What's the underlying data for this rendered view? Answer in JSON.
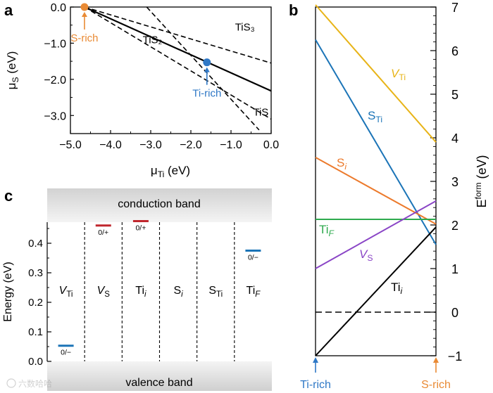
{
  "chart_data": [
    {
      "panel": "a",
      "type": "line",
      "title": "",
      "xlabel": "μ_Ti (eV)",
      "ylabel": "μ_S (eV)",
      "xlim": [
        -5.0,
        0.0
      ],
      "ylim": [
        -3.5,
        0.0
      ],
      "xticks": [
        "−5.0",
        "−4.0",
        "−3.0",
        "−2.0",
        "−1.0",
        "0.0"
      ],
      "yticks": [
        "0.0",
        "−1.0",
        "−2.0",
        "−3.0"
      ],
      "series": [
        {
          "name": "TiS2",
          "style": "solid",
          "points": [
            [
              -4.65,
              0.0
            ],
            [
              0.0,
              -2.32
            ]
          ]
        },
        {
          "name": "TiS3",
          "style": "dashed",
          "points": [
            [
              -4.65,
              0.0
            ],
            [
              0.0,
              -1.55
            ]
          ]
        },
        {
          "name": "TiS",
          "style": "dashed",
          "points": [
            [
              -4.65,
              0.0
            ],
            [
              0.0,
              -3.1
            ]
          ]
        },
        {
          "name": "",
          "style": "dashed",
          "points": [
            [
              -3.1,
              0.0
            ],
            [
              -0.3,
              -3.4
            ]
          ]
        }
      ],
      "labels": [
        {
          "text": "TiS₂",
          "x": -3.2,
          "y": -1.0
        },
        {
          "text": "TiS₃",
          "x": -0.9,
          "y": -0.65
        },
        {
          "text": "TiS",
          "x": -0.45,
          "y": -3.0
        }
      ],
      "markers": [
        {
          "name": "S-rich",
          "x": -4.65,
          "y": 0.0,
          "color": "#e98a34"
        },
        {
          "name": "Ti-rich",
          "x": -1.6,
          "y": -1.53,
          "color": "#2f78c6"
        }
      ]
    },
    {
      "panel": "b",
      "type": "line",
      "title": "",
      "xlabel": "",
      "ylabel": "E^form (eV)",
      "ylim": [
        -1,
        7
      ],
      "yticks": [
        "7",
        "6",
        "5",
        "4",
        "3",
        "2",
        "1",
        "0",
        "−1"
      ],
      "x_ends": {
        "left": "Ti-rich",
        "right": "S-rich"
      },
      "series": [
        {
          "name": "V_Ti",
          "color": "#e8b418",
          "start": 7.05,
          "end": 3.9
        },
        {
          "name": "S_Ti",
          "color": "#1b74b7",
          "start": 6.25,
          "end": 1.55
        },
        {
          "name": "S_i",
          "color": "#ec7a2c",
          "start": 3.55,
          "end": 2.02
        },
        {
          "name": "Ti_F",
          "color": "#2eaa4e",
          "start": 2.13,
          "end": 2.13
        },
        {
          "name": "V_S",
          "color": "#8a45c6",
          "start": 1.0,
          "end": 2.55
        },
        {
          "name": "Ti_i",
          "color": "#000000",
          "start": -1.0,
          "end": 1.95
        }
      ],
      "reference_line": {
        "value": 0,
        "style": "dashed"
      }
    },
    {
      "panel": "c",
      "type": "bar",
      "title": "",
      "xlabel": "",
      "ylabel": "Energy (eV)",
      "ylim": [
        0.0,
        0.47
      ],
      "yticks": [
        "0.0",
        "0.1",
        "0.2",
        "0.3",
        "0.4"
      ],
      "categories": [
        "V_Ti",
        "V_S",
        "Ti_i",
        "S_i",
        "S_Ti",
        "Ti_F"
      ],
      "band_labels": {
        "top": "conduction band",
        "bottom": "valence band"
      },
      "levels": [
        {
          "category": "V_Ti",
          "value": 0.053,
          "charge": "0/−",
          "color": "#1b74b7"
        },
        {
          "category": "V_S",
          "value": 0.46,
          "charge": "0/+",
          "color": "#c0272d"
        },
        {
          "category": "Ti_i",
          "value": 0.475,
          "charge": "0/+",
          "color": "#c0272d"
        },
        {
          "category": "Ti_F",
          "value": 0.375,
          "charge": "0/−",
          "color": "#1b74b7"
        }
      ]
    }
  ],
  "panel_labels": {
    "a": "a",
    "b": "b",
    "c": "c"
  },
  "watermark": "六数哈哈"
}
